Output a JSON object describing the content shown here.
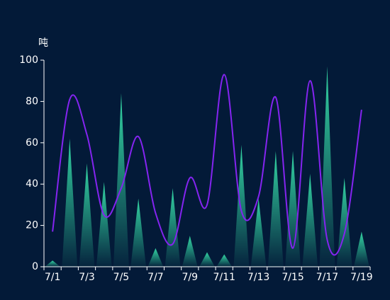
{
  "chart_data": {
    "type": "bar",
    "y_unit": "吨",
    "categories": [
      "7/1",
      null,
      "7/3",
      null,
      "7/5",
      null,
      "7/7",
      null,
      "7/9",
      null,
      "7/11",
      null,
      "7/13",
      null,
      "7/15",
      null,
      "7/17",
      null,
      "7/19"
    ],
    "series": [
      {
        "type": "pictorial",
        "color": "#34d6a4",
        "values": [
          3,
          62,
          50,
          41,
          84,
          33,
          9,
          38,
          15,
          7,
          6,
          59,
          33,
          56,
          56,
          45,
          97,
          43,
          17
        ]
      },
      {
        "type": "line",
        "color": "#8424f0",
        "values": [
          17,
          81,
          64,
          25,
          38,
          63,
          26,
          11,
          43,
          30,
          93,
          27,
          34,
          82,
          9,
          90,
          13,
          16,
          76
        ]
      }
    ],
    "ylim": [
      0,
      100
    ],
    "yticks": [
      0,
      20,
      40,
      60,
      80,
      100
    ]
  }
}
